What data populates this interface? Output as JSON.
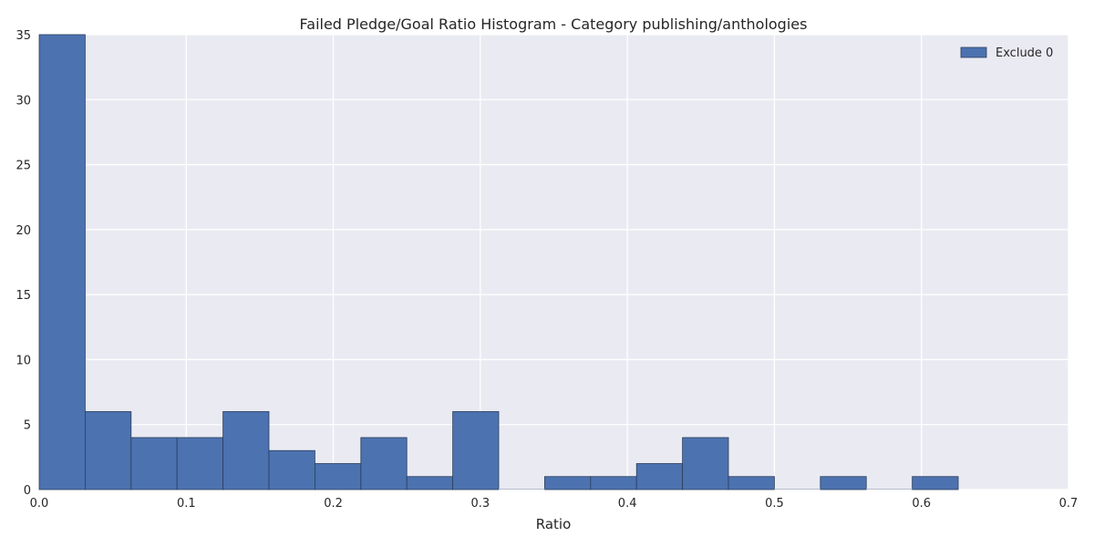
{
  "chart_data": {
    "type": "bar",
    "title": "Failed Pledge/Goal Ratio Histogram - Category publishing/anthologies",
    "xlabel": "Ratio",
    "ylabel": "",
    "xlim": [
      0.0,
      0.7
    ],
    "ylim": [
      0,
      35
    ],
    "x_ticks": [
      "0.0",
      "0.1",
      "0.2",
      "0.3",
      "0.4",
      "0.5",
      "0.6",
      "0.7"
    ],
    "x_tick_values": [
      0.0,
      0.1,
      0.2,
      0.3,
      0.4,
      0.5,
      0.6,
      0.7
    ],
    "y_ticks": [
      "0",
      "5",
      "10",
      "15",
      "20",
      "25",
      "30",
      "35"
    ],
    "y_tick_values": [
      0,
      5,
      10,
      15,
      20,
      25,
      30,
      35
    ],
    "grid": true,
    "legend_position": "top-right",
    "bin_width": 0.03125,
    "series": [
      {
        "name": "Exclude 0",
        "color": "#4c72b0",
        "bins": [
          {
            "x0": 0.0,
            "count": 35
          },
          {
            "x0": 0.03125,
            "count": 6
          },
          {
            "x0": 0.0625,
            "count": 4
          },
          {
            "x0": 0.09375,
            "count": 4
          },
          {
            "x0": 0.125,
            "count": 6
          },
          {
            "x0": 0.15625,
            "count": 3
          },
          {
            "x0": 0.1875,
            "count": 2
          },
          {
            "x0": 0.21875,
            "count": 4
          },
          {
            "x0": 0.25,
            "count": 1
          },
          {
            "x0": 0.28125,
            "count": 6
          },
          {
            "x0": 0.3125,
            "count": 0
          },
          {
            "x0": 0.34375,
            "count": 1
          },
          {
            "x0": 0.375,
            "count": 1
          },
          {
            "x0": 0.40625,
            "count": 2
          },
          {
            "x0": 0.4375,
            "count": 4
          },
          {
            "x0": 0.46875,
            "count": 1
          },
          {
            "x0": 0.5,
            "count": 0
          },
          {
            "x0": 0.53125,
            "count": 1
          },
          {
            "x0": 0.5625,
            "count": 0
          },
          {
            "x0": 0.59375,
            "count": 1
          }
        ]
      }
    ]
  },
  "colors": {
    "plot_background": "#eaeaf2",
    "grid": "#ffffff",
    "bar_edge": "#2b3e5c"
  }
}
